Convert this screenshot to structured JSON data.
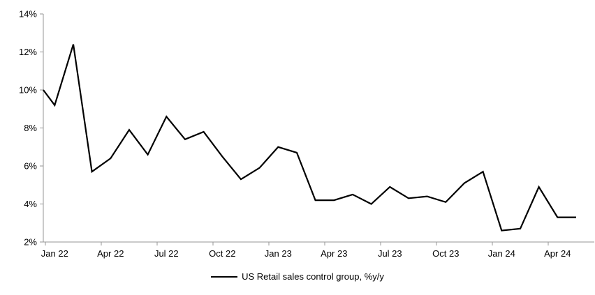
{
  "chart_data": {
    "type": "line",
    "title": "",
    "legend_label": "US Retail sales control group, %y/y",
    "categories": [
      "Jan 22",
      "Feb 22",
      "Mar 22",
      "Apr 22",
      "May 22",
      "Jun 22",
      "Jul 22",
      "Aug 22",
      "Sep 22",
      "Oct 22",
      "Nov 22",
      "Dec 22",
      "Jan 23",
      "Feb 23",
      "Mar 23",
      "Apr 23",
      "May 23",
      "Jun 23",
      "Jul 23",
      "Aug 23",
      "Sep 23",
      "Oct 23",
      "Nov 23",
      "Dec 23",
      "Jan 24",
      "Feb 24",
      "Mar 24",
      "Apr 24",
      "May 24"
    ],
    "values": [
      9.2,
      12.4,
      5.7,
      6.4,
      7.9,
      6.6,
      8.6,
      7.4,
      7.8,
      6.5,
      5.3,
      5.9,
      7.0,
      6.7,
      4.2,
      4.2,
      4.5,
      4.0,
      4.9,
      4.3,
      4.4,
      4.1,
      5.1,
      5.7,
      2.6,
      2.7,
      4.9,
      3.3,
      3.3
    ],
    "edge_entry_percent": 10.0,
    "ylim": [
      2,
      14
    ],
    "yticks": [
      {
        "value": 2,
        "label": "2%"
      },
      {
        "value": 4,
        "label": "4%"
      },
      {
        "value": 6,
        "label": "6%"
      },
      {
        "value": 8,
        "label": "8%"
      },
      {
        "value": 10,
        "label": "10%"
      },
      {
        "value": 12,
        "label": "12%"
      },
      {
        "value": 14,
        "label": "14%"
      }
    ],
    "xtick_labels": [
      "Jan 22",
      "Apr 22",
      "Jul 22",
      "Oct 22",
      "Jan 23",
      "Apr 23",
      "Jul 23",
      "Oct 23",
      "Jan 24",
      "Apr 24"
    ],
    "grid": false,
    "legend_position": "bottom",
    "line_color": "#000000",
    "axis_color": "#969696",
    "text_color": "#000000",
    "background_color": "#ffffff"
  }
}
